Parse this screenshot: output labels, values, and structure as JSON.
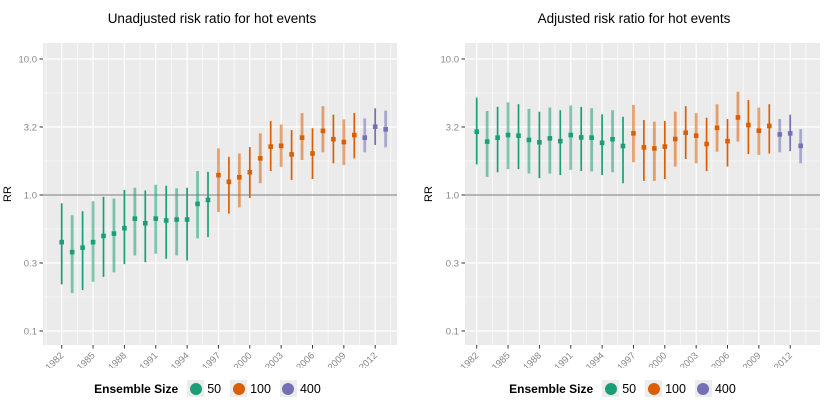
{
  "style": {
    "background": "#ffffff",
    "panel_bg": "#ebebeb",
    "grid_color": "#ffffff",
    "ref_line_color": "#777777",
    "tick_mark_color": "#333333",
    "tick_label_color": "#888888",
    "title_color": "#000000",
    "legend_key_bg": "#ececec"
  },
  "legend": {
    "title": "Ensemble Size",
    "items": [
      {
        "label": "50",
        "color": "#1b9e77"
      },
      {
        "label": "100",
        "color": "#d95f02"
      },
      {
        "label": "400",
        "color": "#7570b3"
      }
    ]
  },
  "chart_data": [
    {
      "type": "pointrange",
      "title": "Unadjusted risk ratio for hot events",
      "xlabel": "",
      "ylabel": "RR",
      "yscale": "log10",
      "ylim": [
        0.079,
        13.2
      ],
      "ref_line": 1.0,
      "grid": true,
      "legend_position": "bottom",
      "y_ticks": [
        {
          "label": "10.0",
          "value": 10
        },
        {
          "label": "3.2",
          "value": 3.162
        },
        {
          "label": "1.0",
          "value": 1
        },
        {
          "label": "0.3",
          "value": 0.3162
        },
        {
          "label": "0.1",
          "value": 0.1
        }
      ],
      "y_minor": [
        5.623,
        1.778,
        0.5623,
        0.1778
      ],
      "x_ticks": [
        1982,
        1985,
        1988,
        1991,
        1994,
        1997,
        2000,
        2003,
        2006,
        2009,
        2012
      ],
      "series": [
        {
          "name": "50",
          "color": "#1b9e77",
          "points_year_rr_lo_hi": [
            [
              1982,
              0.45,
              0.22,
              0.87
            ],
            [
              1983,
              0.38,
              0.19,
              0.71
            ],
            [
              1984,
              0.41,
              0.2,
              0.76
            ],
            [
              1985,
              0.45,
              0.23,
              0.9
            ],
            [
              1986,
              0.5,
              0.25,
              0.97
            ],
            [
              1987,
              0.52,
              0.27,
              0.94
            ],
            [
              1988,
              0.57,
              0.31,
              1.09
            ],
            [
              1989,
              0.67,
              0.36,
              1.13
            ],
            [
              1990,
              0.62,
              0.32,
              1.08
            ],
            [
              1991,
              0.67,
              0.37,
              1.19
            ],
            [
              1992,
              0.65,
              0.34,
              1.17
            ],
            [
              1993,
              0.66,
              0.36,
              1.12
            ],
            [
              1994,
              0.66,
              0.33,
              1.13
            ],
            [
              1995,
              0.86,
              0.48,
              1.5
            ],
            [
              1996,
              0.92,
              0.49,
              1.48
            ]
          ]
        },
        {
          "name": "100",
          "color": "#d95f02",
          "points_year_rr_lo_hi": [
            [
              1997,
              1.4,
              0.75,
              2.2
            ],
            [
              1998,
              1.25,
              0.73,
              1.91
            ],
            [
              1999,
              1.35,
              0.81,
              2.02
            ],
            [
              2000,
              1.47,
              0.95,
              2.25
            ],
            [
              2001,
              1.86,
              1.22,
              2.84
            ],
            [
              2002,
              2.27,
              1.5,
              3.5
            ],
            [
              2003,
              2.3,
              1.61,
              3.3
            ],
            [
              2004,
              1.99,
              1.29,
              3.0
            ],
            [
              2005,
              2.64,
              1.81,
              4.0
            ],
            [
              2006,
              2.02,
              1.31,
              3.1
            ],
            [
              2007,
              2.96,
              2.06,
              4.5
            ],
            [
              2008,
              2.57,
              1.71,
              3.9
            ],
            [
              2009,
              2.45,
              1.66,
              3.6
            ],
            [
              2010,
              2.76,
              1.86,
              4.0
            ]
          ]
        },
        {
          "name": "400",
          "color": "#7570b3",
          "points_year_rr_lo_hi": [
            [
              2011,
              2.64,
              2.06,
              3.66
            ],
            [
              2012,
              3.18,
              2.33,
              4.34
            ],
            [
              2013,
              3.04,
              2.24,
              4.17
            ]
          ]
        }
      ]
    },
    {
      "type": "pointrange",
      "title": "Adjusted risk ratio for hot events",
      "xlabel": "",
      "ylabel": "RR",
      "yscale": "log10",
      "ylim": [
        0.079,
        13.2
      ],
      "ref_line": 1.0,
      "grid": true,
      "legend_position": "bottom",
      "y_ticks": [
        {
          "label": "10.0",
          "value": 10
        },
        {
          "label": "3.2",
          "value": 3.162
        },
        {
          "label": "1.0",
          "value": 1
        },
        {
          "label": "0.3",
          "value": 0.3162
        },
        {
          "label": "0.1",
          "value": 0.1
        }
      ],
      "y_minor": [
        5.623,
        1.778,
        0.5623,
        0.1778
      ],
      "x_ticks": [
        1982,
        1985,
        1988,
        1991,
        1994,
        1997,
        2000,
        2003,
        2006,
        2009,
        2012
      ],
      "series": [
        {
          "name": "50",
          "color": "#1b9e77",
          "points_year_rr_lo_hi": [
            [
              1982,
              2.92,
              1.68,
              5.2
            ],
            [
              1983,
              2.47,
              1.36,
              4.15
            ],
            [
              1984,
              2.64,
              1.47,
              4.45
            ],
            [
              1985,
              2.76,
              1.55,
              4.8
            ],
            [
              1986,
              2.73,
              1.55,
              4.65
            ],
            [
              1987,
              2.54,
              1.44,
              4.3
            ],
            [
              1988,
              2.44,
              1.33,
              4.1
            ],
            [
              1989,
              2.61,
              1.44,
              4.4
            ],
            [
              1990,
              2.49,
              1.4,
              4.2
            ],
            [
              1991,
              2.76,
              1.53,
              4.55
            ],
            [
              1992,
              2.65,
              1.5,
              4.45
            ],
            [
              1993,
              2.64,
              1.49,
              4.35
            ],
            [
              1994,
              2.42,
              1.4,
              3.92
            ],
            [
              1995,
              2.57,
              1.47,
              4.2
            ],
            [
              1996,
              2.29,
              1.22,
              3.76
            ]
          ]
        },
        {
          "name": "100",
          "color": "#d95f02",
          "points_year_rr_lo_hi": [
            [
              1997,
              2.84,
              1.74,
              4.6
            ],
            [
              1998,
              2.24,
              1.27,
              3.56
            ],
            [
              1999,
              2.2,
              1.27,
              3.46
            ],
            [
              2000,
              2.27,
              1.31,
              3.5
            ],
            [
              2001,
              2.58,
              1.62,
              4.1
            ],
            [
              2002,
              2.87,
              1.84,
              4.5
            ],
            [
              2003,
              2.73,
              1.71,
              4.0
            ],
            [
              2004,
              2.37,
              1.5,
              3.7
            ],
            [
              2005,
              3.12,
              2.08,
              4.65
            ],
            [
              2006,
              2.49,
              1.62,
              3.62
            ],
            [
              2007,
              3.72,
              2.47,
              5.75
            ],
            [
              2008,
              3.27,
              2.0,
              5.0
            ],
            [
              2009,
              2.97,
              1.97,
              4.4
            ],
            [
              2010,
              3.22,
              2.02,
              4.65
            ]
          ]
        },
        {
          "name": "400",
          "color": "#7570b3",
          "points_year_rr_lo_hi": [
            [
              2011,
              2.79,
              2.06,
              3.62
            ],
            [
              2012,
              2.84,
              2.1,
              3.9
            ],
            [
              2013,
              2.3,
              1.71,
              3.05
            ]
          ]
        }
      ]
    }
  ]
}
